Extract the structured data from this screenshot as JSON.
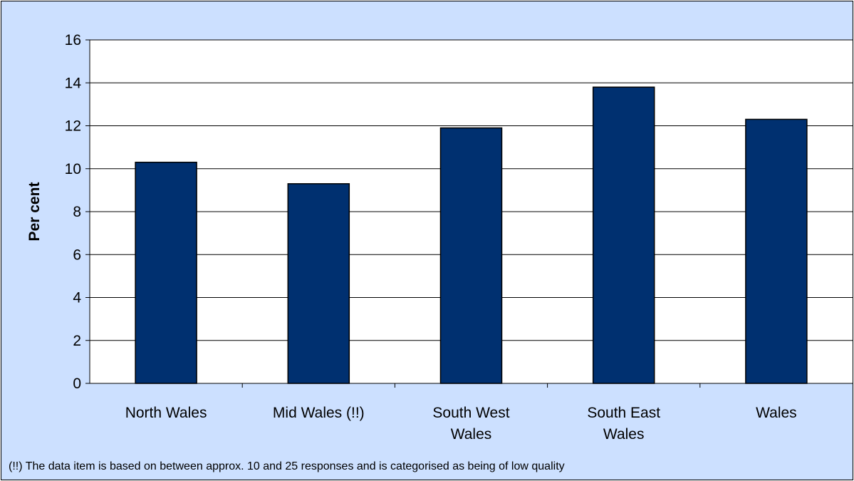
{
  "colors": {
    "background": "#cce0ff",
    "plot_area": "#ffffff",
    "bar_fill": "#003070",
    "bar_stroke": "#000000",
    "gridline": "#000000"
  },
  "chart_data": {
    "type": "bar",
    "title": "",
    "xlabel": "",
    "ylabel": "Per cent",
    "categories": [
      "North Wales",
      "Mid Wales (!!)",
      "South West Wales",
      "South East Wales",
      "Wales"
    ],
    "category_lines": [
      [
        "North Wales"
      ],
      [
        "Mid Wales (!!)"
      ],
      [
        "South West",
        "Wales"
      ],
      [
        "South East",
        "Wales"
      ],
      [
        "Wales"
      ]
    ],
    "values": [
      10.3,
      9.3,
      11.9,
      13.8,
      12.3
    ],
    "ylim": [
      0,
      16
    ],
    "yticks": [
      0,
      2,
      4,
      6,
      8,
      10,
      12,
      14,
      16
    ],
    "grid": true,
    "legend": "none"
  },
  "footnote": "(!!) The data item is based on between approx. 10 and 25 responses and is categorised as being of low quality"
}
